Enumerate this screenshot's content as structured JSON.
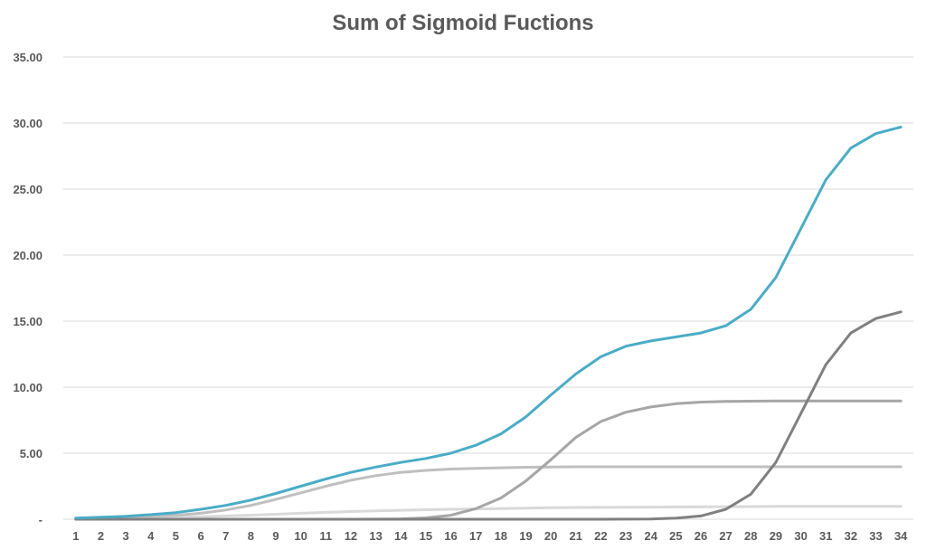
{
  "chart_data": {
    "type": "line",
    "title": "Sum of Sigmoid Fuctions",
    "xlabel": "",
    "ylabel": "",
    "ylim": [
      0,
      35
    ],
    "y_ticks": [
      {
        "value": 0,
        "label": "-"
      },
      {
        "value": 5,
        "label": "5.00"
      },
      {
        "value": 10,
        "label": "10.00"
      },
      {
        "value": 15,
        "label": "15.00"
      },
      {
        "value": 20,
        "label": "20.00"
      },
      {
        "value": 25,
        "label": "25.00"
      },
      {
        "value": 30,
        "label": "30.00"
      },
      {
        "value": 35,
        "label": "35.00"
      }
    ],
    "grid": true,
    "legend": "none",
    "categories": [
      "1",
      "2",
      "3",
      "4",
      "5",
      "6",
      "7",
      "8",
      "9",
      "10",
      "11",
      "12",
      "13",
      "14",
      "15",
      "16",
      "17",
      "18",
      "19",
      "20",
      "21",
      "22",
      "23",
      "24",
      "25",
      "26",
      "27",
      "28",
      "29",
      "30",
      "31",
      "32",
      "33",
      "34"
    ],
    "series": [
      {
        "color": "#d9d9d9",
        "values": [
          0.03,
          0.05,
          0.07,
          0.1,
          0.14,
          0.19,
          0.25,
          0.31,
          0.38,
          0.45,
          0.52,
          0.58,
          0.63,
          0.68,
          0.72,
          0.75,
          0.78,
          0.81,
          0.84,
          0.87,
          0.89,
          0.9,
          0.91,
          0.92,
          0.93,
          0.94,
          0.95,
          0.96,
          0.97,
          0.97,
          0.98,
          0.98,
          0.98,
          0.98
        ]
      },
      {
        "color": "#bfbfbf",
        "values": [
          0.05,
          0.08,
          0.12,
          0.2,
          0.3,
          0.45,
          0.7,
          1.05,
          1.5,
          2.0,
          2.5,
          2.95,
          3.3,
          3.55,
          3.7,
          3.8,
          3.85,
          3.9,
          3.94,
          3.96,
          3.97,
          3.97,
          3.97,
          3.97,
          3.97,
          3.97,
          3.97,
          3.97,
          3.97,
          3.97,
          3.97,
          3.97,
          3.97,
          3.97
        ]
      },
      {
        "color": "#a6a6a6",
        "values": [
          0,
          0,
          0,
          0,
          0,
          0,
          0,
          0,
          0,
          0,
          0,
          0,
          0.01,
          0.03,
          0.1,
          0.3,
          0.8,
          1.6,
          2.9,
          4.5,
          6.2,
          7.4,
          8.1,
          8.5,
          8.75,
          8.87,
          8.92,
          8.94,
          8.95,
          8.96,
          8.96,
          8.96,
          8.96,
          8.96
        ]
      },
      {
        "color": "#808080",
        "values": [
          0,
          0,
          0,
          0,
          0,
          0,
          0,
          0,
          0,
          0,
          0,
          0,
          0,
          0,
          0,
          0,
          0,
          0,
          0,
          0,
          0,
          0,
          0.01,
          0.02,
          0.08,
          0.25,
          0.75,
          1.9,
          4.3,
          8.0,
          11.7,
          14.1,
          15.2,
          15.7
        ]
      },
      {
        "color": "#4bacc6",
        "values": [
          0.08,
          0.15,
          0.22,
          0.35,
          0.5,
          0.75,
          1.05,
          1.45,
          1.95,
          2.5,
          3.05,
          3.55,
          3.95,
          4.3,
          4.6,
          5.0,
          5.6,
          6.45,
          7.75,
          9.4,
          11.0,
          12.3,
          13.1,
          13.5,
          13.8,
          14.1,
          14.65,
          15.9,
          18.3,
          22.0,
          25.7,
          28.1,
          29.2,
          29.7
        ]
      }
    ]
  }
}
